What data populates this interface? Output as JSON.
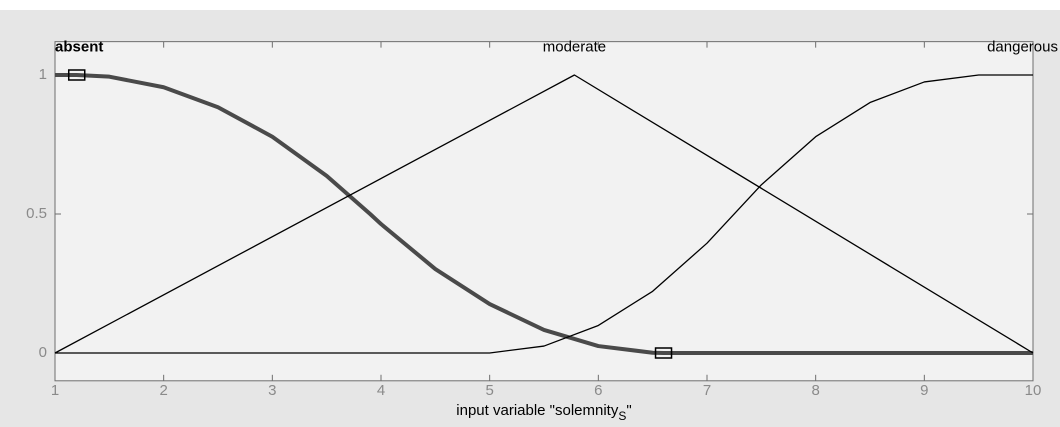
{
  "chart_data": {
    "type": "line",
    "xlabel_parts": [
      "input variable \"solemnity",
      "S",
      "\""
    ],
    "xlim": [
      1,
      10
    ],
    "xticks": [
      1,
      2,
      3,
      4,
      5,
      6,
      7,
      8,
      9,
      10
    ],
    "ylim": [
      -0.1,
      1.12
    ],
    "yticks": [
      0,
      0.5,
      1
    ],
    "series": [
      {
        "name": "absent",
        "color": "#4a4a4a",
        "bold": true,
        "x": [
          1,
          1.2,
          1.5,
          2,
          2.5,
          3,
          3.5,
          3.9,
          4,
          4.5,
          5,
          5.5,
          6,
          6.5,
          6.6,
          7,
          8,
          9,
          10
        ],
        "values": [
          1,
          1,
          0.994,
          0.956,
          0.884,
          0.778,
          0.637,
          0.5,
          0.464,
          0.302,
          0.176,
          0.083,
          0.025,
          0.001,
          0,
          0,
          0,
          0,
          0
        ]
      },
      {
        "name": "moderate",
        "color": "#000000",
        "x": [
          1,
          5.78,
          10
        ],
        "values": [
          0,
          1,
          0
        ]
      },
      {
        "name": "dangerous",
        "color": "#000000",
        "x": [
          1,
          5,
          5.5,
          6,
          6.5,
          7,
          7.5,
          8,
          8.5,
          9,
          9.5,
          10
        ],
        "values": [
          0,
          0,
          0.025,
          0.099,
          0.222,
          0.395,
          0.605,
          0.778,
          0.901,
          0.975,
          1,
          1
        ]
      }
    ],
    "handles": {
      "x": [
        1.2,
        6.6
      ],
      "values": [
        1,
        0
      ]
    }
  }
}
